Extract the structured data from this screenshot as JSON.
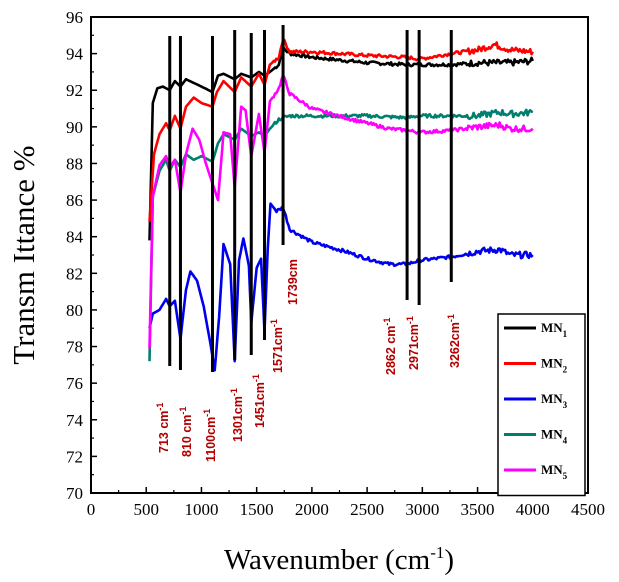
{
  "chart_data": {
    "type": "line",
    "title": "",
    "xlabel": "Wavenumber (cm",
    "xlabel_sup": "-1",
    "xlabel_close": ")",
    "ylabel": "Transm Ittance %",
    "xlim": [
      0,
      4500
    ],
    "ylim": [
      70,
      96
    ],
    "xticks": [
      "0",
      "500",
      "1000",
      "1500",
      "2000",
      "2500",
      "3000",
      "3500",
      "4000",
      "4500"
    ],
    "yticks": [
      "70",
      "72",
      "74",
      "76",
      "78",
      "80",
      "82",
      "84",
      "86",
      "88",
      "90",
      "92",
      "94",
      "96"
    ],
    "grid": false,
    "legend_position": "bottom-right",
    "series": [
      {
        "name": "MN",
        "sub": "1",
        "color": "#000000",
        "points": [
          [
            530,
            83.8
          ],
          [
            560,
            91.3
          ],
          [
            600,
            92.1
          ],
          [
            650,
            92.2
          ],
          [
            713,
            92.0
          ],
          [
            760,
            92.5
          ],
          [
            810,
            92.2
          ],
          [
            860,
            92.6
          ],
          [
            930,
            92.4
          ],
          [
            1000,
            92.2
          ],
          [
            1100,
            91.9
          ],
          [
            1150,
            92.8
          ],
          [
            1200,
            92.9
          ],
          [
            1301,
            92.6
          ],
          [
            1360,
            92.9
          ],
          [
            1451,
            92.7
          ],
          [
            1520,
            93.0
          ],
          [
            1571,
            92.8
          ],
          [
            1620,
            93.0
          ],
          [
            1700,
            93.4
          ],
          [
            1739,
            94.3
          ],
          [
            1800,
            94.0
          ],
          [
            2000,
            93.8
          ],
          [
            2500,
            93.5
          ],
          [
            2862,
            93.4
          ],
          [
            2971,
            93.4
          ],
          [
            3262,
            93.4
          ],
          [
            3500,
            93.5
          ],
          [
            3800,
            93.5
          ],
          [
            4000,
            93.6
          ]
        ]
      },
      {
        "name": "MN",
        "sub": "2",
        "color": "#ff0000",
        "points": [
          [
            530,
            84.8
          ],
          [
            570,
            88.5
          ],
          [
            620,
            89.6
          ],
          [
            680,
            90.2
          ],
          [
            713,
            89.8
          ],
          [
            760,
            90.6
          ],
          [
            810,
            89.9
          ],
          [
            860,
            91.1
          ],
          [
            930,
            91.6
          ],
          [
            1000,
            91.3
          ],
          [
            1100,
            91.1
          ],
          [
            1140,
            91.9
          ],
          [
            1200,
            92.5
          ],
          [
            1301,
            91.9
          ],
          [
            1360,
            92.7
          ],
          [
            1451,
            92.2
          ],
          [
            1520,
            92.9
          ],
          [
            1571,
            92.3
          ],
          [
            1620,
            93.4
          ],
          [
            1700,
            93.8
          ],
          [
            1739,
            94.8
          ],
          [
            1800,
            94.1
          ],
          [
            2000,
            94.1
          ],
          [
            2500,
            93.9
          ],
          [
            2862,
            93.8
          ],
          [
            2971,
            93.7
          ],
          [
            3262,
            94.0
          ],
          [
            3500,
            94.2
          ],
          [
            3650,
            94.5
          ],
          [
            3800,
            94.2
          ],
          [
            4000,
            94.1
          ]
        ]
      },
      {
        "name": "MN",
        "sub": "3",
        "color": "#0000ee",
        "points": [
          [
            530,
            79.0
          ],
          [
            560,
            79.8
          ],
          [
            620,
            80.0
          ],
          [
            680,
            80.6
          ],
          [
            713,
            80.2
          ],
          [
            760,
            80.5
          ],
          [
            810,
            78.4
          ],
          [
            860,
            81.1
          ],
          [
            900,
            82.1
          ],
          [
            960,
            81.6
          ],
          [
            1020,
            80.2
          ],
          [
            1080,
            78.2
          ],
          [
            1120,
            76.7
          ],
          [
            1160,
            79.6
          ],
          [
            1200,
            83.6
          ],
          [
            1260,
            82.5
          ],
          [
            1301,
            77.2
          ],
          [
            1340,
            82.7
          ],
          [
            1380,
            83.9
          ],
          [
            1430,
            82.4
          ],
          [
            1451,
            79.3
          ],
          [
            1500,
            82.3
          ],
          [
            1540,
            82.8
          ],
          [
            1571,
            78.8
          ],
          [
            1600,
            83.3
          ],
          [
            1625,
            85.8
          ],
          [
            1680,
            85.4
          ],
          [
            1739,
            85.6
          ],
          [
            1800,
            84.4
          ],
          [
            2000,
            83.7
          ],
          [
            2300,
            83.2
          ],
          [
            2500,
            82.8
          ],
          [
            2700,
            82.5
          ],
          [
            2862,
            82.5
          ],
          [
            2971,
            82.7
          ],
          [
            3262,
            82.9
          ],
          [
            3500,
            83.2
          ],
          [
            3700,
            83.3
          ],
          [
            3800,
            83.0
          ],
          [
            4000,
            83.0
          ]
        ]
      },
      {
        "name": "MN",
        "sub": "4",
        "color": "#007f6e",
        "points": [
          [
            530,
            77.2
          ],
          [
            560,
            86.2
          ],
          [
            620,
            87.6
          ],
          [
            680,
            88.2
          ],
          [
            713,
            87.6
          ],
          [
            760,
            88.2
          ],
          [
            810,
            87.8
          ],
          [
            860,
            88.5
          ],
          [
            930,
            88.2
          ],
          [
            1000,
            88.4
          ],
          [
            1100,
            88.1
          ],
          [
            1150,
            89.1
          ],
          [
            1200,
            89.6
          ],
          [
            1301,
            89.3
          ],
          [
            1360,
            89.9
          ],
          [
            1451,
            89.5
          ],
          [
            1520,
            89.7
          ],
          [
            1571,
            89.5
          ],
          [
            1620,
            89.9
          ],
          [
            1700,
            90.4
          ],
          [
            1739,
            90.5
          ],
          [
            1800,
            90.6
          ],
          [
            2000,
            90.6
          ],
          [
            2500,
            90.6
          ],
          [
            2862,
            90.5
          ],
          [
            2971,
            90.6
          ],
          [
            3262,
            90.6
          ],
          [
            3500,
            90.6
          ],
          [
            3700,
            90.8
          ],
          [
            3800,
            90.7
          ],
          [
            4000,
            90.8
          ]
        ]
      },
      {
        "name": "MN",
        "sub": "5",
        "color": "#ff00ff",
        "points": [
          [
            530,
            77.9
          ],
          [
            560,
            86.2
          ],
          [
            620,
            87.9
          ],
          [
            680,
            88.4
          ],
          [
            713,
            87.8
          ],
          [
            760,
            88.2
          ],
          [
            810,
            86.4
          ],
          [
            860,
            88.5
          ],
          [
            920,
            89.9
          ],
          [
            980,
            89.3
          ],
          [
            1040,
            88.0
          ],
          [
            1100,
            86.9
          ],
          [
            1150,
            86.0
          ],
          [
            1200,
            89.7
          ],
          [
            1260,
            89.6
          ],
          [
            1301,
            86.7
          ],
          [
            1360,
            91.1
          ],
          [
            1400,
            90.9
          ],
          [
            1451,
            88.4
          ],
          [
            1520,
            90.7
          ],
          [
            1571,
            88.6
          ],
          [
            1620,
            91.4
          ],
          [
            1700,
            92.1
          ],
          [
            1739,
            92.8
          ],
          [
            1800,
            91.8
          ],
          [
            2000,
            91.0
          ],
          [
            2300,
            90.5
          ],
          [
            2500,
            90.2
          ],
          [
            2700,
            89.9
          ],
          [
            2862,
            89.8
          ],
          [
            2971,
            89.7
          ],
          [
            3262,
            89.8
          ],
          [
            3500,
            90.0
          ],
          [
            3700,
            90.1
          ],
          [
            3800,
            89.9
          ],
          [
            4000,
            89.9
          ]
        ]
      }
    ],
    "markers": [
      {
        "x": 713,
        "label": "713 cm",
        "sup": "-1"
      },
      {
        "x": 810,
        "label": "810 cm",
        "sup": "-1"
      },
      {
        "x": 1100,
        "label": "1100cm",
        "sup": "-1"
      },
      {
        "x": 1301,
        "label": "1301cm",
        "sup": "-1"
      },
      {
        "x": 1451,
        "label": "1451cm",
        "sup": "-1"
      },
      {
        "x": 1571,
        "label": "1571cm",
        "sup": "-1"
      },
      {
        "x": 1739,
        "label": "1739cm",
        "sup": ""
      },
      {
        "x": 2862,
        "label": "2862 cm",
        "sup": "-1"
      },
      {
        "x": 2971,
        "label": "2971cm",
        "sup": "-1"
      },
      {
        "x": 3262,
        "label": "3262cm",
        "sup": "-1"
      }
    ]
  }
}
